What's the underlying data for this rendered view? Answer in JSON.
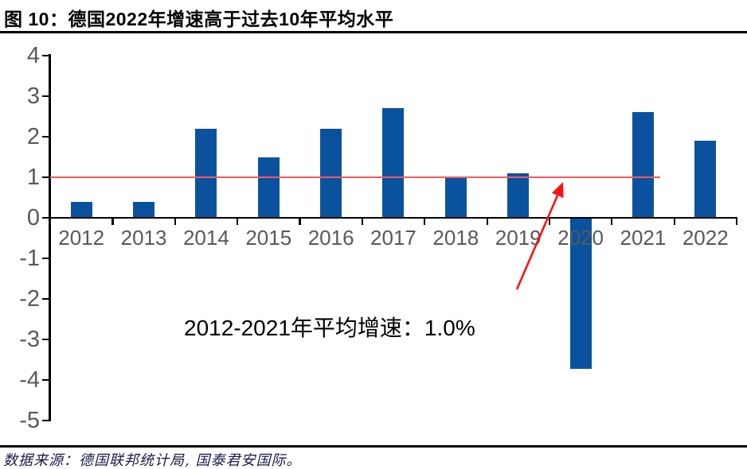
{
  "figure": {
    "title": "图 10：德国2022年增速高于过去10年平均水平",
    "source": "数据来源：德国联邦统计局, 国泰君安国际。"
  },
  "chart_data": {
    "type": "bar",
    "categories": [
      "2012",
      "2013",
      "2014",
      "2015",
      "2016",
      "2017",
      "2018",
      "2019",
      "2020",
      "2021",
      "2022"
    ],
    "values": [
      0.4,
      0.4,
      2.2,
      1.5,
      2.2,
      2.7,
      1.0,
      1.1,
      -3.7,
      2.6,
      1.9
    ],
    "title": "图 10：德国2022年增速高于过去10年平均水平",
    "xlabel": "",
    "ylabel": "",
    "ylim": [
      -5,
      4
    ],
    "yticks": [
      4,
      3,
      2,
      1,
      0,
      -1,
      -2,
      -3,
      -4,
      -5
    ],
    "grid": false,
    "legend": "none",
    "bar_color": "#0A529E",
    "axis_color": "#000000",
    "tick_label_color": "#595959",
    "reference_line": {
      "value": 1.0,
      "color": "#F85A5A"
    },
    "annotation": {
      "text": "2012-2021年平均增速：1.0%",
      "arrow_color": "#FE1010"
    }
  }
}
